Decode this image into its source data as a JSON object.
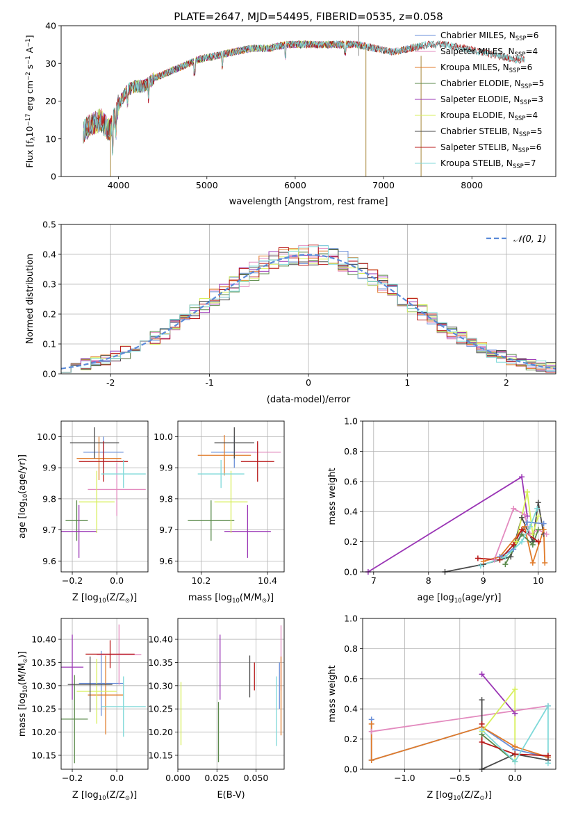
{
  "palette": {
    "Chabrier MILES": "#6a8fd8",
    "Salpeter MILES": "#e38bbf",
    "Kroupa MILES": "#e07b2a",
    "Chabrier ELODIE": "#5a8a4a",
    "Salpeter ELODIE": "#9a35b5",
    "Kroupa ELODIE": "#d7ef5a",
    "Chabrier STELIB": "#4a4a4a",
    "Salpeter STELIB": "#b81818",
    "Kroupa STELIB": "#7fd9d9"
  },
  "chart_data": [
    {
      "id": "spectrum",
      "type": "line",
      "title": "PLATE=2647, MJD=54495, FIBERID=0535, z=0.058",
      "xlabel": "wavelength [Angstrom, rest frame]",
      "ylabel": "Flux [f$_\\lambda$10$^{-17}$ erg cm$^{-2}$ s$^{-1}$ A$^{-1}$]",
      "ylabel_parts": [
        "Flux [f",
        "λ",
        "10",
        "−17",
        " erg cm",
        "−2",
        " s",
        "−1",
        " A",
        "−1",
        "]"
      ],
      "xlim": [
        3350,
        8950
      ],
      "ylim": [
        0,
        40
      ],
      "xticks": [
        4000,
        5000,
        6000,
        7000,
        8000
      ],
      "yticks": [
        0,
        10,
        20,
        30,
        40
      ],
      "grid": false,
      "legend_placement": "right",
      "continuum": {
        "x": [
          3600,
          3700,
          3800,
          3900,
          4000,
          4100,
          4200,
          4300,
          4400,
          4500,
          4700,
          4900,
          5100,
          5300,
          5500,
          5700,
          5900,
          6100,
          6300,
          6500,
          6700,
          6900,
          7100,
          7300,
          7500,
          7700,
          7900,
          8100,
          8300,
          8500
        ],
        "y": [
          12,
          14,
          15,
          12,
          19,
          23,
          24,
          24,
          26,
          27,
          29,
          31,
          32,
          33,
          34,
          34,
          35,
          35,
          35,
          35,
          35,
          34,
          33,
          34,
          35,
          35,
          34,
          33,
          32,
          31
        ]
      },
      "series": [
        {
          "name": "Chabrier MILES",
          "label_parts": [
            "Chabrier MILES, N",
            "SSP",
            "=6"
          ],
          "xmax": 7450
        },
        {
          "name": "Salpeter MILES",
          "label_parts": [
            "Salpeter MILES, N",
            "SSP",
            "=4"
          ],
          "xmax": 7450
        },
        {
          "name": "Kroupa MILES",
          "label_parts": [
            "Kroupa MILES, N",
            "SSP",
            "=6"
          ],
          "xmax": 7450
        },
        {
          "name": "Chabrier ELODIE",
          "label_parts": [
            "Chabrier ELODIE, N",
            "SSP",
            "=5"
          ],
          "xmax": 6800
        },
        {
          "name": "Salpeter ELODIE",
          "label_parts": [
            "Salpeter ELODIE, N",
            "SSP",
            "=3"
          ],
          "xmax": 6800
        },
        {
          "name": "Kroupa ELODIE",
          "label_parts": [
            "Kroupa ELODIE, N",
            "SSP",
            "=4"
          ],
          "xmax": 6800
        },
        {
          "name": "Chabrier STELIB",
          "label_parts": [
            "Chabrier STELIB, N",
            "SSP",
            "=5"
          ],
          "xmax": 8600
        },
        {
          "name": "Salpeter STELIB",
          "label_parts": [
            "Salpeter STELIB, N",
            "SSP",
            "=6"
          ],
          "xmax": 8600
        },
        {
          "name": "Kroupa STELIB",
          "label_parts": [
            "Kroupa STELIB, N",
            "SSP",
            "=7"
          ],
          "xmax": 8600
        }
      ]
    },
    {
      "id": "residuals",
      "type": "line",
      "xlabel": "(data-model)/error",
      "ylabel": "Normed distribution",
      "xlim": [
        -2.5,
        2.5
      ],
      "ylim": [
        0,
        0.5
      ],
      "xticks": [
        -2,
        -1,
        0,
        1,
        2
      ],
      "yticks": [
        0.0,
        0.1,
        0.2,
        0.3,
        0.4,
        0.5
      ],
      "ytick_labels": [
        "0.0",
        "0.1",
        "0.2",
        "0.3",
        "0.4",
        "0.5"
      ],
      "grid": true,
      "legend_placement": "top-right",
      "legend": "N(0, 1)",
      "legend_label": "𝒩(0, 1)",
      "gaussian": {
        "mean": 0,
        "sigma": 1
      },
      "histogram": {
        "bin_start": -2.5,
        "bin_width": 0.1
      }
    },
    {
      "id": "age-vs-Z",
      "type": "scatter",
      "xlabel_parts": [
        "Z [log",
        "10",
        "(Z/Z",
        "⊙",
        ")]"
      ],
      "ylabel_parts": [
        "age  [log",
        "10",
        "(age/yr)]"
      ],
      "xlim": [
        -0.25,
        0.14
      ],
      "ylim": [
        9.565,
        10.05
      ],
      "xticks": [
        -0.2,
        0.0
      ],
      "xtick_labels": [
        "−0.2",
        "0.0"
      ],
      "yticks": [
        9.6,
        9.7,
        9.8,
        9.9,
        10.0
      ],
      "ytick_labels": [
        "9.6",
        "9.7",
        "9.8",
        "9.9",
        "10.0"
      ],
      "grid": true,
      "points": [
        {
          "series": "Chabrier MILES",
          "x": -0.06,
          "xerr": 0.09,
          "y": 9.95,
          "yerr": 0.05
        },
        {
          "series": "Salpeter MILES",
          "x": 0.0,
          "xerr": 0.13,
          "y": 9.83,
          "yerr": 0.085
        },
        {
          "series": "Kroupa MILES",
          "x": -0.08,
          "xerr": 0.1,
          "y": 9.93,
          "yerr": 0.07
        },
        {
          "series": "Chabrier ELODIE",
          "x": -0.18,
          "xerr": 0.05,
          "y": 9.73,
          "yerr": 0.065
        },
        {
          "series": "Salpeter ELODIE",
          "x": -0.17,
          "xerr": 0.08,
          "y": 9.695,
          "yerr": 0.085
        },
        {
          "series": "Kroupa ELODIE",
          "x": -0.09,
          "xerr": 0.08,
          "y": 9.79,
          "yerr": 0.1
        },
        {
          "series": "Chabrier STELIB",
          "x": -0.1,
          "xerr": 0.11,
          "y": 9.98,
          "yerr": 0.05
        },
        {
          "series": "Salpeter STELIB",
          "x": -0.06,
          "xerr": 0.11,
          "y": 9.92,
          "yerr": 0.065
        },
        {
          "series": "Kroupa STELIB",
          "x": 0.03,
          "xerr": 0.1,
          "y": 9.88,
          "yerr": 0.045
        }
      ]
    },
    {
      "id": "age-vs-mass",
      "type": "scatter",
      "xlabel_parts": [
        "mass [log",
        "10",
        "(M/M",
        "⊙",
        ")]"
      ],
      "xlim": [
        10.13,
        10.45
      ],
      "ylim": [
        9.565,
        10.05
      ],
      "xticks": [
        10.2,
        10.4
      ],
      "xtick_labels": [
        "10.2",
        "10.4"
      ],
      "yticks": [
        9.6,
        9.7,
        9.8,
        9.9,
        10.0
      ],
      "ytick_labels": [
        "9.6",
        "9.7",
        "9.8",
        "9.9",
        "10.0"
      ],
      "grid": true,
      "points": [
        {
          "series": "Chabrier MILES",
          "x": 10.3,
          "xerr": 0.07,
          "y": 9.95,
          "yerr": 0.05
        },
        {
          "series": "Salpeter MILES",
          "x": 10.37,
          "xerr": 0.07,
          "y": 9.95,
          "yerr": 0.03
        },
        {
          "series": "Kroupa MILES",
          "x": 10.27,
          "xerr": 0.08,
          "y": 9.94,
          "yerr": 0.065
        },
        {
          "series": "Chabrier ELODIE",
          "x": 10.23,
          "xerr": 0.07,
          "y": 9.73,
          "yerr": 0.065
        },
        {
          "series": "Salpeter ELODIE",
          "x": 10.34,
          "xerr": 0.07,
          "y": 9.695,
          "yerr": 0.085
        },
        {
          "series": "Kroupa ELODIE",
          "x": 10.29,
          "xerr": 0.05,
          "y": 9.79,
          "yerr": 0.1
        },
        {
          "series": "Chabrier STELIB",
          "x": 10.3,
          "xerr": 0.06,
          "y": 9.98,
          "yerr": 0.05
        },
        {
          "series": "Salpeter STELIB",
          "x": 10.37,
          "xerr": 0.05,
          "y": 9.92,
          "yerr": 0.065
        },
        {
          "series": "Kroupa STELIB",
          "x": 10.26,
          "xerr": 0.07,
          "y": 9.88,
          "yerr": 0.045
        }
      ]
    },
    {
      "id": "mass-weight-vs-age",
      "type": "line",
      "xlabel_parts": [
        "age  [log",
        "10",
        "(age/yr)]"
      ],
      "ylabel": "mass weight",
      "xlim": [
        6.8,
        10.32
      ],
      "ylim": [
        0,
        1
      ],
      "xticks": [
        7,
        8,
        9,
        10
      ],
      "yticks": [
        0.0,
        0.2,
        0.4,
        0.6,
        0.8,
        1.0
      ],
      "ytick_labels": [
        "0.0",
        "0.2",
        "0.4",
        "0.6",
        "0.8",
        "1.0"
      ],
      "grid": true,
      "series": [
        {
          "name": "Salpeter ELODIE",
          "x": [
            6.9,
            9.7,
            9.8
          ],
          "y": [
            0.0,
            0.63,
            0.37
          ]
        },
        {
          "name": "Chabrier STELIB",
          "x": [
            8.3,
            9.0,
            9.5,
            9.7,
            9.9,
            10.0,
            10.1
          ],
          "y": [
            0.0,
            0.05,
            0.1,
            0.36,
            0.2,
            0.46,
            0.25
          ]
        },
        {
          "name": "Salpeter MILES",
          "x": [
            9.2,
            9.55,
            9.75,
            9.85,
            10.0,
            10.15
          ],
          "y": [
            0.08,
            0.42,
            0.38,
            0.25,
            0.28,
            0.25
          ]
        },
        {
          "name": "Kroupa ELODIE",
          "x": [
            9.3,
            9.6,
            9.8,
            9.9,
            10.0
          ],
          "y": [
            0.08,
            0.2,
            0.53,
            0.25,
            0.37
          ]
        },
        {
          "name": "Kroupa MILES",
          "x": [
            9.0,
            9.3,
            9.75,
            9.9,
            10.1,
            10.12
          ],
          "y": [
            0.07,
            0.1,
            0.3,
            0.06,
            0.28,
            0.06
          ]
        },
        {
          "name": "Chabrier MILES",
          "x": [
            9.3,
            9.55,
            9.8,
            10.1
          ],
          "y": [
            0.1,
            0.15,
            0.33,
            0.32
          ]
        },
        {
          "name": "Chabrier ELODIE",
          "x": [
            9.4,
            9.7,
            9.9,
            10.0
          ],
          "y": [
            0.05,
            0.25,
            0.18,
            0.28
          ]
        },
        {
          "name": "Salpeter STELIB",
          "x": [
            8.9,
            9.3,
            9.55,
            9.7,
            10.0
          ],
          "y": [
            0.09,
            0.08,
            0.18,
            0.28,
            0.2
          ]
        },
        {
          "name": "Kroupa STELIB",
          "x": [
            8.95,
            9.4,
            9.7,
            9.85,
            9.98
          ],
          "y": [
            0.04,
            0.1,
            0.2,
            0.3,
            0.42
          ]
        }
      ]
    },
    {
      "id": "mass-vs-Z",
      "type": "scatter",
      "xlabel_parts": [
        "Z [log",
        "10",
        "(Z/Z",
        "⊙",
        ")]"
      ],
      "ylabel_parts": [
        "mass [log",
        "10",
        "(M/M",
        "⊙",
        ")]"
      ],
      "xlim": [
        -0.25,
        0.14
      ],
      "ylim": [
        10.12,
        10.445
      ],
      "xticks": [
        -0.2,
        0.0
      ],
      "xtick_labels": [
        "−0.2",
        "0.0"
      ],
      "yticks": [
        10.15,
        10.2,
        10.25,
        10.3,
        10.35,
        10.4
      ],
      "ytick_labels": [
        "10.15",
        "10.20",
        "10.25",
        "10.30",
        "10.35",
        "10.40"
      ],
      "grid": true,
      "points": [
        {
          "series": "Chabrier MILES",
          "x": -0.07,
          "xerr": 0.1,
          "y": 10.305,
          "yerr": 0.07
        },
        {
          "series": "Salpeter MILES",
          "x": 0.01,
          "xerr": 0.1,
          "y": 10.367,
          "yerr": 0.065
        },
        {
          "series": "Kroupa MILES",
          "x": -0.05,
          "xerr": 0.08,
          "y": 10.28,
          "yerr": 0.085
        },
        {
          "series": "Chabrier ELODIE",
          "x": -0.19,
          "xerr": 0.06,
          "y": 10.228,
          "yerr": 0.095
        },
        {
          "series": "Salpeter ELODIE",
          "x": -0.2,
          "xerr": 0.05,
          "y": 10.34,
          "yerr": 0.07
        },
        {
          "series": "Kroupa ELODIE",
          "x": -0.09,
          "xerr": 0.09,
          "y": 10.288,
          "yerr": 0.07
        },
        {
          "series": "Chabrier STELIB",
          "x": -0.12,
          "xerr": 0.1,
          "y": 10.303,
          "yerr": 0.06
        },
        {
          "series": "Salpeter STELIB",
          "x": -0.03,
          "xerr": 0.11,
          "y": 10.368,
          "yerr": 0.03
        },
        {
          "series": "Kroupa STELIB",
          "x": 0.03,
          "xerr": 0.1,
          "y": 10.255,
          "yerr": 0.065
        }
      ]
    },
    {
      "id": "mass-vs-ebv",
      "type": "scatter",
      "xlabel": "E(B-V)",
      "xlim": [
        0.0,
        0.068
      ],
      "ylim": [
        10.12,
        10.445
      ],
      "xticks": [
        0.0,
        0.025,
        0.05
      ],
      "xtick_labels": [
        "0.000",
        "0.025",
        "0.050"
      ],
      "yticks": [
        10.15,
        10.2,
        10.25,
        10.3,
        10.35,
        10.4
      ],
      "ytick_labels": [
        "10.15",
        "10.20",
        "10.25",
        "10.30",
        "10.35",
        "10.40"
      ],
      "grid": true,
      "points": [
        {
          "series": "Kroupa ELODIE",
          "x": 0.002,
          "y": 10.24,
          "yerr": 0.068
        },
        {
          "series": "Chabrier ELODIE",
          "x": 0.026,
          "y": 10.2,
          "yerr": 0.065
        },
        {
          "series": "Salpeter ELODIE",
          "x": 0.027,
          "y": 10.34,
          "yerr": 0.07
        },
        {
          "series": "Chabrier STELIB",
          "x": 0.046,
          "y": 10.32,
          "yerr": 0.045
        },
        {
          "series": "Salpeter STELIB",
          "x": 0.049,
          "y": 10.32,
          "yerr": 0.03
        },
        {
          "series": "Kroupa STELIB",
          "x": 0.063,
          "y": 10.245,
          "yerr": 0.075
        },
        {
          "series": "Salpeter MILES",
          "x": 0.066,
          "y": 10.36,
          "yerr": 0.07
        },
        {
          "series": "Kroupa MILES",
          "x": 0.066,
          "y": 10.278,
          "yerr": 0.085
        },
        {
          "series": "Chabrier MILES",
          "x": 0.065,
          "y": 10.3,
          "yerr": 0.05
        }
      ]
    },
    {
      "id": "mass-weight-vs-Z",
      "type": "line",
      "xlabel_parts": [
        "Z [log",
        "10",
        "(Z/Z",
        "⊙",
        ")]"
      ],
      "ylabel": "mass weight",
      "xlim": [
        -1.38,
        0.37
      ],
      "ylim": [
        0,
        1
      ],
      "xticks": [
        -1.0,
        -0.5,
        0.0
      ],
      "xtick_labels": [
        "−1.0",
        "−0.5",
        "0.0"
      ],
      "yticks": [
        0.0,
        0.2,
        0.4,
        0.6,
        0.8,
        1.0
      ],
      "ytick_labels": [
        "0.0",
        "0.2",
        "0.4",
        "0.6",
        "0.8",
        "1.0"
      ],
      "grid": true,
      "series": [
        {
          "name": "Salpeter MILES",
          "x": [
            -1.3,
            0.3
          ],
          "y": [
            0.25,
            0.42
          ]
        },
        {
          "name": "Chabrier MILES",
          "x": [
            -1.3,
            -1.3,
            -0.3,
            0.0,
            0.3
          ],
          "y": [
            0.33,
            0.06,
            0.28,
            0.13,
            0.08
          ]
        },
        {
          "name": "Kroupa MILES",
          "x": [
            -1.3,
            -1.3,
            -0.3,
            0.0,
            0.3
          ],
          "y": [
            0.3,
            0.06,
            0.28,
            0.15,
            0.08
          ]
        },
        {
          "name": "Salpeter ELODIE",
          "x": [
            -0.3,
            0.0
          ],
          "y": [
            0.63,
            0.37
          ]
        },
        {
          "name": "Kroupa ELODIE",
          "x": [
            -0.3,
            0.0,
            0.0
          ],
          "y": [
            0.25,
            0.53,
            0.05
          ]
        },
        {
          "name": "Chabrier ELODIE",
          "x": [
            -0.3,
            0.0
          ],
          "y": [
            0.23,
            0.05
          ]
        },
        {
          "name": "Chabrier STELIB",
          "x": [
            -0.3,
            -0.3,
            0.0,
            0.3
          ],
          "y": [
            0.46,
            0.0,
            0.1,
            0.06
          ]
        },
        {
          "name": "Salpeter STELIB",
          "x": [
            -0.3,
            -0.3,
            0.0,
            0.3
          ],
          "y": [
            0.3,
            0.18,
            0.1,
            0.09
          ]
        },
        {
          "name": "Kroupa STELIB",
          "x": [
            -0.3,
            0.0,
            0.3,
            0.3
          ],
          "y": [
            0.26,
            0.05,
            0.42,
            0.04
          ]
        }
      ]
    }
  ]
}
